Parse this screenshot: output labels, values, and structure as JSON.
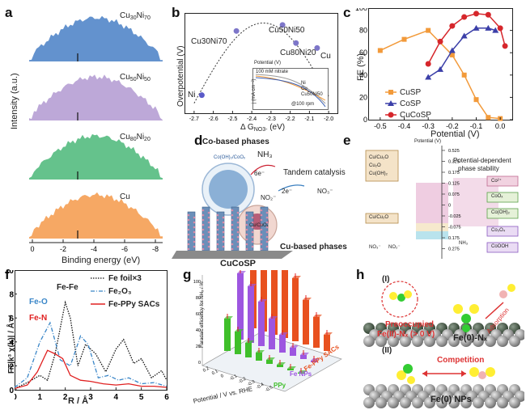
{
  "panels": {
    "a": {
      "label": "a",
      "ylabel": "Intensity (a.u.)",
      "xlabel": "Binding energy (eV)",
      "ticks": [
        "0",
        "-2",
        "-4",
        "-6",
        "-8"
      ],
      "spectra": [
        {
          "name": "Cu30Ni70",
          "base": "Cu",
          "s1": "30",
          "mid": "Ni",
          "s2": "70",
          "color": "#5b8ccb"
        },
        {
          "name": "Cu50Ni50",
          "base": "Cu",
          "s1": "50",
          "mid": "Ni",
          "s2": "50",
          "color": "#b9a3d6"
        },
        {
          "name": "Cu80Ni20",
          "base": "Cu",
          "s1": "80",
          "mid": "Ni",
          "s2": "20",
          "color": "#5dbf86"
        },
        {
          "name": "Cu",
          "base": "Cu",
          "s1": "",
          "mid": "",
          "s2": "",
          "color": "#f5a35c"
        }
      ]
    },
    "b": {
      "label": "b",
      "ylabel": "Overpotential (V)",
      "xlabel_main": "Δ G",
      "xlabel_sub": "NO3-",
      "xlabel_unit": " (eV)",
      "ticks": [
        "-2.7",
        "-2.6",
        "-2.5",
        "-2.4",
        "-2.3",
        "-2.2",
        "-2.1",
        "-2.0"
      ],
      "points": [
        {
          "text": "Ni",
          "x": -2.66,
          "y": 0.18
        },
        {
          "text": "Cu30Ni70",
          "x": -2.48,
          "y": 0.82
        },
        {
          "text": "Cu50Ni50",
          "x": -2.24,
          "y": 0.88
        },
        {
          "text": "Cu80Ni20",
          "x": -2.17,
          "y": 0.7
        },
        {
          "text": "Cu",
          "x": -2.06,
          "y": 0.65
        }
      ],
      "inset": {
        "xlabel": "Potential (V)",
        "ylabel": "j (mA cm⁻²)",
        "note1": "100 mM nitrate",
        "note2": "@100 rpm",
        "ticks": [
          "0.3",
          "0.2",
          "0.1",
          "0.0",
          "-0.1",
          "-0.2",
          "-0.3"
        ],
        "legend": [
          "Ni",
          "Cu",
          "Cu50Ni50"
        ]
      }
    },
    "c": {
      "label": "c",
      "ylabel": "FE (%)",
      "xlabel": "Potential (V)",
      "xticks": [
        "-0.5",
        "-0.4",
        "-0.3",
        "-0.2",
        "-0.1",
        "0.0"
      ],
      "yticks": [
        "0",
        "20",
        "40",
        "60",
        "80",
        "100"
      ],
      "legend": [
        "CuSP",
        "CoSP",
        "CuCoSP"
      ]
    },
    "d": {
      "label": "d",
      "co_phase": "Co-based phases",
      "co_text": "Co(OH)₂/CoOₓ",
      "cu_phase": "Cu-based phases",
      "cu_text": "Cu/CuOₓ",
      "tandem": "Tandem catalysis",
      "nh3": "NH₃",
      "no2": "NO₂⁻",
      "no3": "NO₃⁻",
      "e6": "6e⁻",
      "e2": "2e⁻",
      "sample": "CuCoSP"
    },
    "e": {
      "label": "e",
      "axis_title": "Potential (V)",
      "title2": "Potential-dependent",
      "title3": "phase stability",
      "ticks": [
        "0.525",
        "0.325",
        "0.175",
        "0.125",
        "0.075",
        "0",
        "-0.025",
        "-0.075",
        "0.175",
        "0.275"
      ],
      "left_box1": [
        "Cu/Cu₂O",
        "Cu₂O",
        "Cu(OH)₂"
      ],
      "left_box2": "Cu/Cu₂O",
      "right_boxes": [
        "Co²⁺",
        "CoOₓ",
        "Co(OH)₂",
        "Co₃O₄",
        "CoOOH"
      ],
      "nitrate": "NO₃⁻",
      "nitrite": "NO₂⁻",
      "ammonia": "NH₃"
    },
    "f": {
      "label": "f",
      "ylabel": "FT|k³ χ(k)| / Å⁻⁴",
      "xlabel": "R / Å",
      "xticks": [
        "0",
        "1",
        "2",
        "3",
        "4",
        "5",
        "6"
      ],
      "yticks": [
        "0",
        "2",
        "4",
        "6",
        "8",
        "10"
      ],
      "legend": [
        "Fe foil×3",
        "Fe₂O₃",
        "Fe-PPy SACs"
      ],
      "peaks": [
        "Fe-Fe",
        "Fe-O",
        "Fe-N"
      ]
    },
    "g": {
      "label": "g",
      "zlabel": "Faradaic efficiency for NH₃ / %",
      "xlabel": "Potential / V vs. RHE",
      "zticks": [
        "0",
        "20",
        "40",
        "60",
        "80",
        "100"
      ],
      "series_labels": [
        "PPy",
        "Fe NPs",
        "Fe-PPy SACs"
      ],
      "xticks": [
        "0.2",
        "0.1",
        "0",
        "-0.1",
        "-0.2",
        "-0.3",
        "-0.4",
        "-0.5"
      ]
    },
    "h": {
      "label": "h",
      "case1": "(I)",
      "case2": "(II)",
      "preoccupied1": "Preoccupied",
      "preoccupied2": "Fe(II)-Nₓ (> 0 V)",
      "adsorption": "Adsorption",
      "fe0nx": "Fe(0)-Nₓ",
      "competition": "Competition",
      "fe0nps": "Fe(0) NPs"
    }
  },
  "chart_data": [
    {
      "panel": "c",
      "type": "line",
      "title": "",
      "xlabel": "Potential (V)",
      "ylabel": "FE (%)",
      "xlim": [
        -0.55,
        0.05
      ],
      "ylim": [
        0,
        100
      ],
      "series": [
        {
          "name": "CuSP",
          "color": "#f29a3a",
          "x": [
            -0.5,
            -0.4,
            -0.3,
            -0.2,
            -0.15,
            -0.1,
            -0.05,
            0.0
          ],
          "y": [
            62,
            72,
            80,
            58,
            40,
            18,
            2,
            1
          ]
        },
        {
          "name": "CoSP",
          "color": "#3b3fa8",
          "x": [
            -0.3,
            -0.25,
            -0.2,
            -0.15,
            -0.1,
            -0.05,
            -0.02
          ],
          "y": [
            38,
            45,
            62,
            75,
            82,
            82,
            80
          ]
        },
        {
          "name": "CuCoSP",
          "color": "#d6262b",
          "x": [
            -0.3,
            -0.25,
            -0.2,
            -0.15,
            -0.1,
            -0.05,
            0.0,
            0.02
          ],
          "y": [
            50,
            70,
            84,
            92,
            95,
            94,
            82,
            66
          ]
        }
      ]
    },
    {
      "panel": "f",
      "type": "line",
      "title": "",
      "xlabel": "R / Å",
      "ylabel": "FT|k³ χ(k)| / Å⁻⁴",
      "xlim": [
        0,
        6
      ],
      "ylim": [
        0,
        10
      ],
      "series": [
        {
          "name": "Fe foil×3",
          "color": "#111111",
          "x": [
            0,
            0.5,
            1.0,
            1.3,
            1.6,
            2.0,
            2.2,
            2.5,
            2.8,
            3.2,
            3.6,
            4.0,
            4.3,
            4.7,
            5.0,
            5.4,
            5.8,
            6.0
          ],
          "y": [
            0.1,
            0.6,
            1.2,
            0.8,
            3.0,
            7.3,
            6.0,
            2.0,
            3.8,
            3.0,
            1.5,
            3.4,
            4.2,
            2.2,
            2.6,
            1.0,
            1.6,
            0.8
          ]
        },
        {
          "name": "Fe₂O₃",
          "color": "#3a86c8",
          "x": [
            0,
            0.5,
            1.0,
            1.4,
            1.8,
            2.2,
            2.6,
            2.9,
            3.3,
            3.7,
            4.1,
            4.5,
            5.0,
            5.5,
            6.0
          ],
          "y": [
            0.2,
            1.0,
            4.0,
            5.6,
            2.5,
            2.0,
            4.5,
            3.8,
            1.0,
            1.2,
            0.8,
            1.0,
            0.5,
            0.6,
            0.3
          ]
        },
        {
          "name": "Fe-PPy SACs",
          "color": "#e02020",
          "x": [
            0,
            0.5,
            0.9,
            1.3,
            1.6,
            1.9,
            2.2,
            2.6,
            3.0,
            3.5,
            4.0,
            4.5,
            5.0,
            5.5,
            6.0
          ],
          "y": [
            0.1,
            0.4,
            1.5,
            3.3,
            3.0,
            2.6,
            1.2,
            0.8,
            0.7,
            0.5,
            0.4,
            0.5,
            0.3,
            0.3,
            0.2
          ]
        }
      ]
    },
    {
      "panel": "g",
      "type": "bar",
      "title": "",
      "xlabel": "Potential / V vs. RHE",
      "ylabel": "Faradaic efficiency for NH₃ / %",
      "categories": [
        "0.2",
        "0.1",
        "0",
        "-0.1",
        "-0.2",
        "-0.3",
        "-0.4",
        "-0.5"
      ],
      "series": [
        {
          "name": "Fe-PPy SACs",
          "color": "#e8511f",
          "values": [
            20,
            38,
            55,
            78,
            94,
            96,
            100,
            100
          ]
        },
        {
          "name": "Fe NPs",
          "color": "#9d56e0",
          "values": [
            2,
            5,
            10,
            22,
            38,
            55,
            70,
            82
          ]
        },
        {
          "name": "PPy",
          "color": "#3fbf2a",
          "values": [
            1,
            2,
            3,
            5,
            10,
            18,
            28,
            40
          ]
        }
      ]
    }
  ]
}
